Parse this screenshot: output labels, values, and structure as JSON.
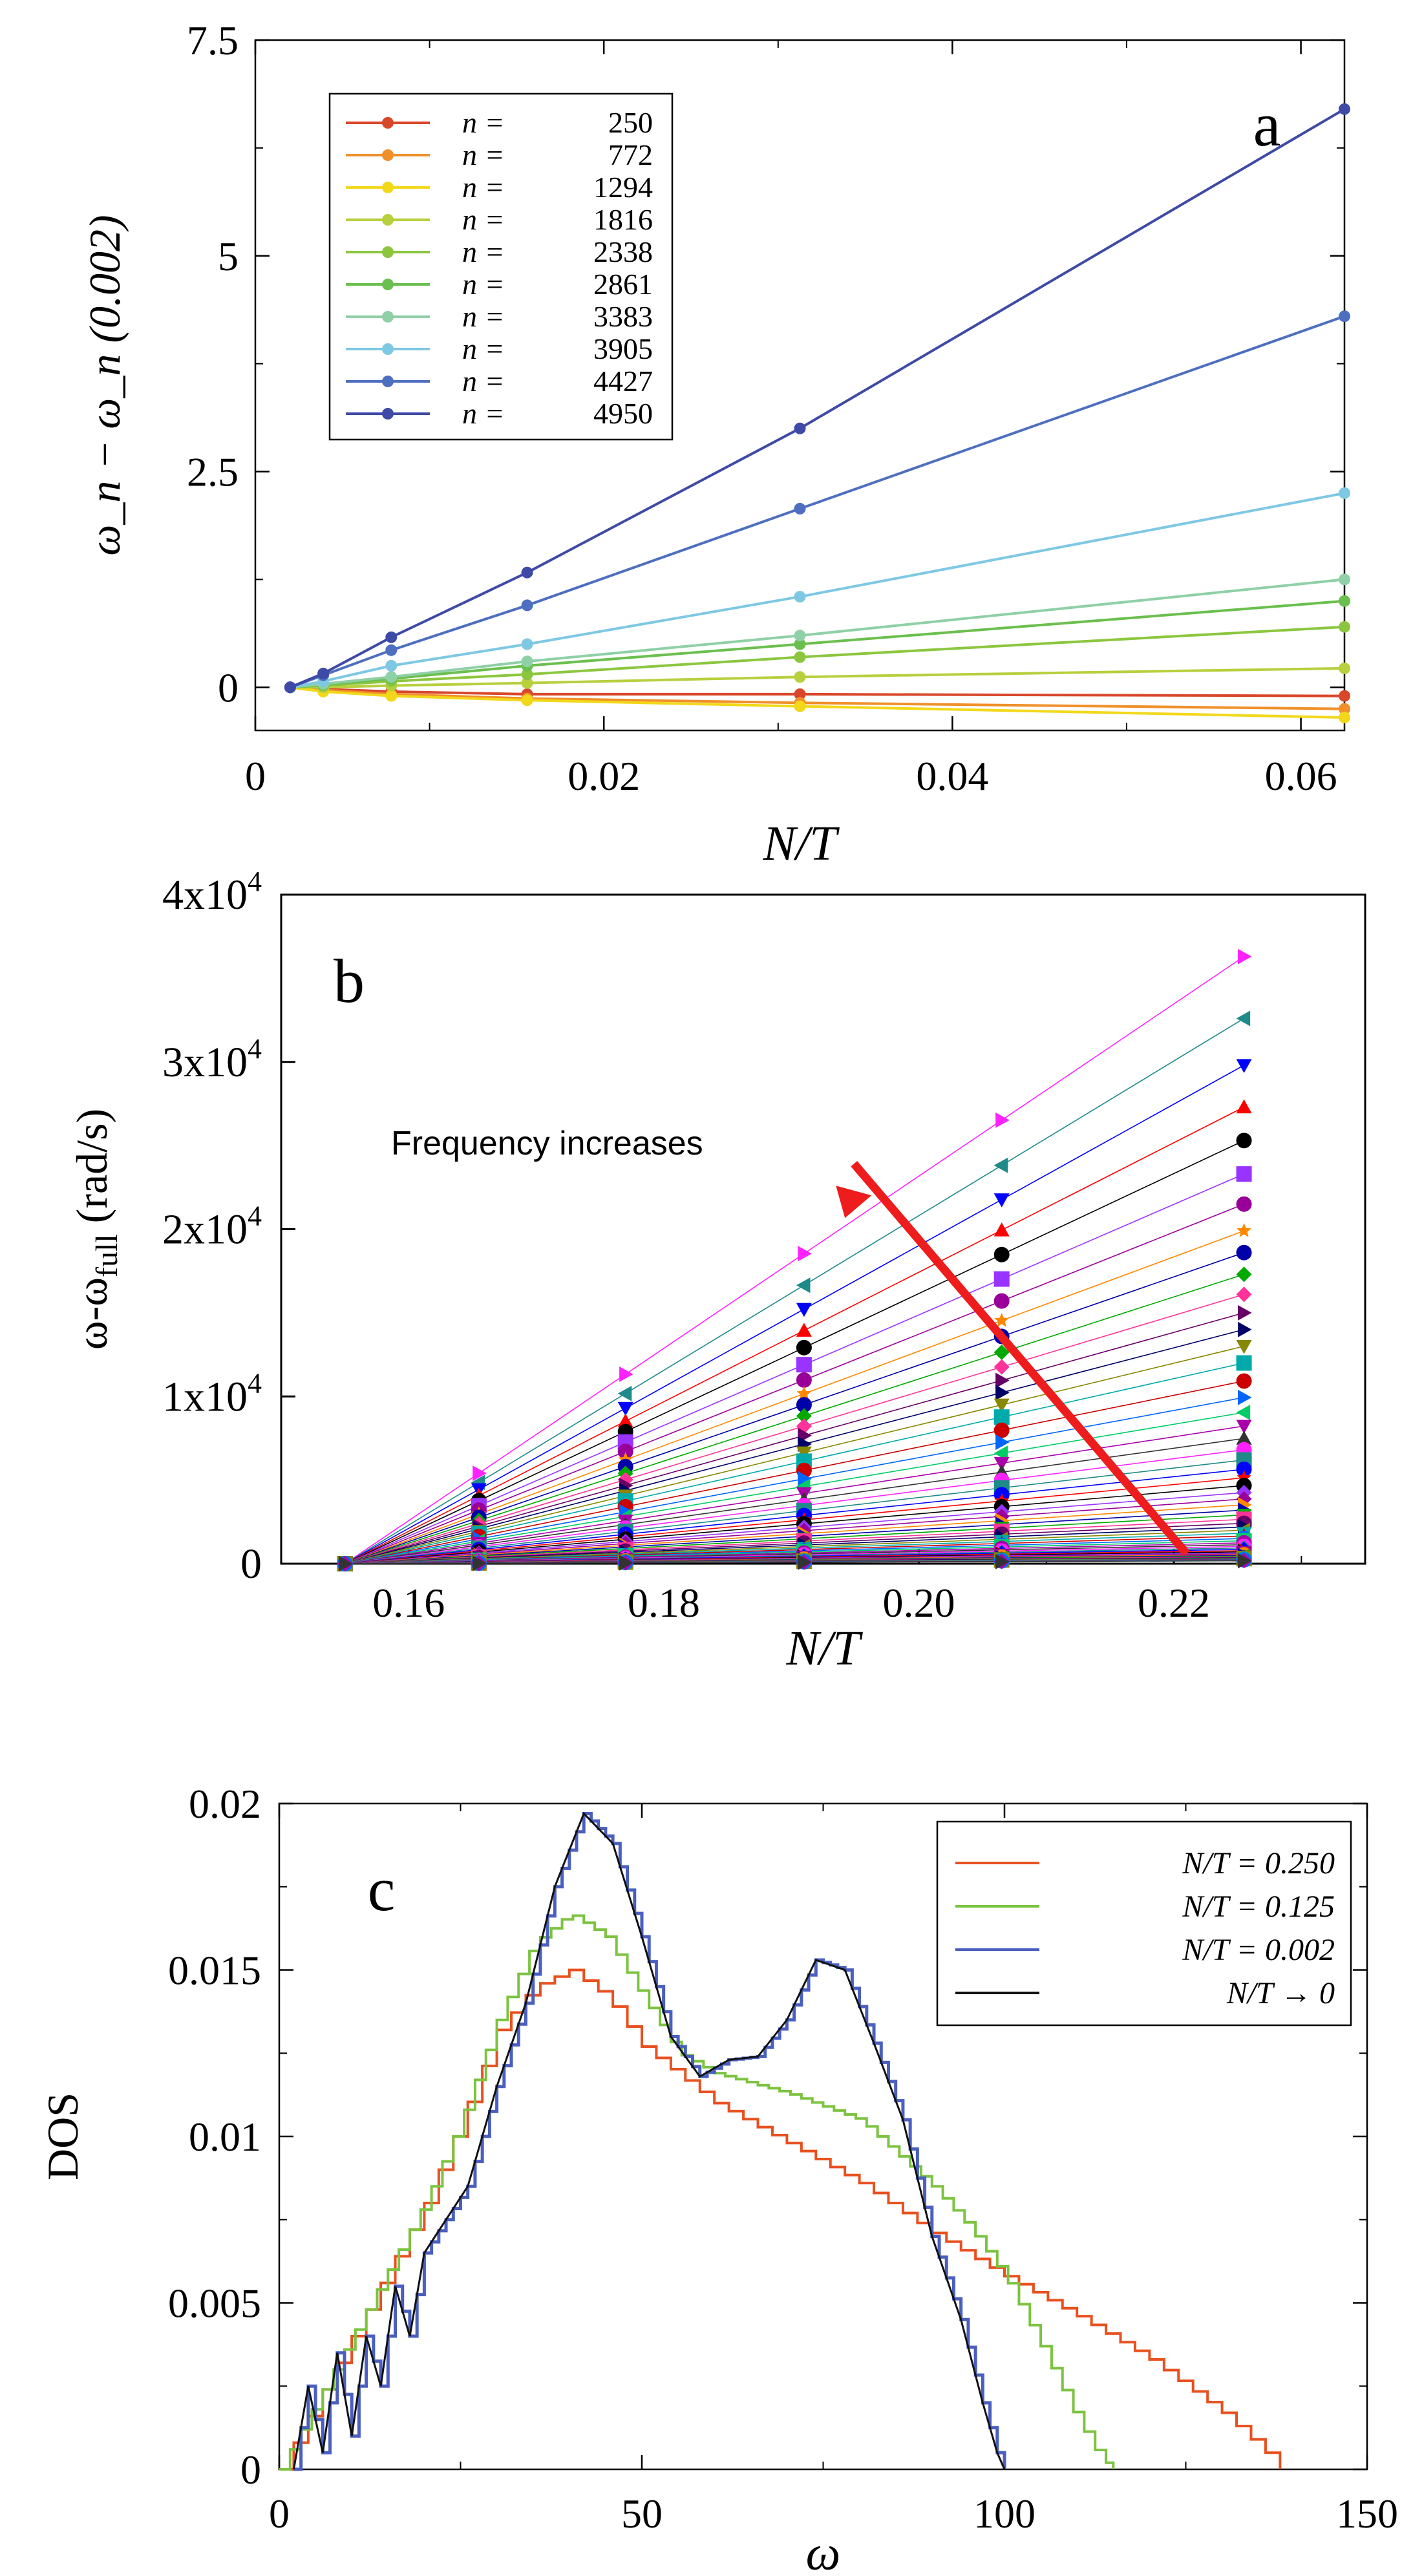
{
  "figure": {
    "panels": [
      "a",
      "b",
      "c"
    ]
  },
  "chart_data": [
    {
      "panel_label": "a",
      "type": "line",
      "xlabel": "N/T",
      "ylabel": "ω_n − ω_n (0.002)",
      "xlim": [
        0,
        0.0625
      ],
      "ylim": [
        -0.5,
        7.5
      ],
      "xticks": [
        0,
        0.02,
        0.04,
        0.06
      ],
      "xtick_labels": [
        "0",
        "0.02",
        "0.04",
        "0.06"
      ],
      "yticks": [
        0,
        2.5,
        5,
        7.5
      ],
      "ytick_labels": [
        "0",
        "2.5",
        "5",
        "7.5"
      ],
      "legend_position": "top-left",
      "legend_prefix": "n = ",
      "x": [
        0.002,
        0.0039,
        0.0078,
        0.0156,
        0.03125,
        0.0625
      ],
      "series": [
        {
          "name": "250",
          "color": "#d9472b",
          "values": [
            0,
            -0.02,
            -0.05,
            -0.08,
            -0.08,
            -0.1
          ]
        },
        {
          "name": "772",
          "color": "#f0902a",
          "values": [
            0,
            -0.03,
            -0.08,
            -0.13,
            -0.18,
            -0.25
          ]
        },
        {
          "name": "1294",
          "color": "#f2d81b",
          "values": [
            0,
            -0.05,
            -0.1,
            -0.15,
            -0.22,
            -0.35
          ]
        },
        {
          "name": "1816",
          "color": "#b8cf3e",
          "values": [
            0,
            0.0,
            0.02,
            0.05,
            0.12,
            0.22
          ]
        },
        {
          "name": "2338",
          "color": "#8cc63f",
          "values": [
            0,
            0.02,
            0.07,
            0.15,
            0.35,
            0.7
          ]
        },
        {
          "name": "2861",
          "color": "#6bbf4e",
          "values": [
            0,
            0.03,
            0.1,
            0.25,
            0.5,
            1.0
          ]
        },
        {
          "name": "3383",
          "color": "#8fd0a6",
          "values": [
            0,
            0.04,
            0.12,
            0.3,
            0.6,
            1.25
          ]
        },
        {
          "name": "3905",
          "color": "#7ec8e3",
          "values": [
            0,
            0.07,
            0.25,
            0.5,
            1.05,
            2.25
          ]
        },
        {
          "name": "4427",
          "color": "#4e6fc0",
          "values": [
            0,
            0.14,
            0.43,
            0.95,
            2.07,
            4.3
          ]
        },
        {
          "name": "4950",
          "color": "#3f4aa6",
          "values": [
            0,
            0.16,
            0.58,
            1.33,
            3.0,
            6.7
          ]
        }
      ]
    },
    {
      "panel_label": "b",
      "type": "scatter",
      "xlabel": "N/T",
      "ylabel": "ω-ω_full (rad/s)",
      "ylabel_main": "ω-ω",
      "ylabel_sub": "full",
      "ylabel_unit": " (rad/s)",
      "xlim": [
        0.15,
        0.235
      ],
      "ylim": [
        0,
        40000
      ],
      "xticks": [
        0.16,
        0.18,
        0.2,
        0.22
      ],
      "xtick_labels": [
        "0.16",
        "0.18",
        "0.20",
        "0.22"
      ],
      "yticks": [
        0,
        10000,
        20000,
        30000,
        40000
      ],
      "ytick_mantissa": [
        "0",
        "1x10",
        "2x10",
        "3x10",
        "4x10"
      ],
      "ytick_exponent": [
        "",
        "4",
        "4",
        "4",
        "4"
      ],
      "x": [
        0.155,
        0.1655,
        0.177,
        0.191,
        0.2065,
        0.2255
      ],
      "highest_series_slopes": [
        36300,
        32600,
        29800,
        27300,
        25300,
        23300,
        21500,
        19900,
        18600,
        17300,
        16100,
        15000,
        14000,
        13000,
        12000
      ],
      "annotation": "Frequency increases",
      "arrow_from": [
        0.221,
        600
      ],
      "arrow_to": [
        0.1935,
        22600
      ],
      "arrow_color": "#ee1c1c"
    },
    {
      "panel_label": "c",
      "type": "step",
      "xlabel": "ω",
      "ylabel": "DOS",
      "xlim": [
        0,
        150
      ],
      "ylim": [
        0,
        0.02
      ],
      "xticks": [
        0,
        50,
        100,
        150
      ],
      "xtick_labels": [
        "0",
        "50",
        "100",
        "150"
      ],
      "yticks": [
        0,
        0.005,
        0.01,
        0.015,
        0.02
      ],
      "ytick_labels": [
        "0",
        "0.005",
        "0.01",
        "0.015",
        "0.02"
      ],
      "legend_position": "top-right",
      "series": [
        {
          "name": "N/T = 0.250",
          "color": "#e8501f",
          "x": [
            0,
            5,
            10,
            15,
            20,
            25,
            30,
            35,
            40,
            45,
            50,
            60,
            70,
            80,
            90,
            100,
            110,
            120,
            130,
            137,
            138
          ],
          "values": [
            0.0,
            0.002,
            0.004,
            0.006,
            0.008,
            0.0105,
            0.0132,
            0.0145,
            0.015,
            0.0142,
            0.0127,
            0.011,
            0.0098,
            0.0086,
            0.0071,
            0.0058,
            0.0046,
            0.0033,
            0.0017,
            0.0003,
            0
          ]
        },
        {
          "name": "N/T = 0.125",
          "color": "#7cc340",
          "x": [
            0,
            5,
            10,
            15,
            20,
            25,
            30,
            35,
            40,
            45,
            50,
            55,
            60,
            70,
            80,
            90,
            95,
            100,
            105,
            110,
            113,
            115
          ],
          "values": [
            0.0,
            0.002,
            0.004,
            0.006,
            0.008,
            0.0105,
            0.0135,
            0.0158,
            0.0167,
            0.016,
            0.0142,
            0.0125,
            0.0119,
            0.0113,
            0.0105,
            0.0085,
            0.0073,
            0.0058,
            0.0037,
            0.0015,
            0.0004,
            0
          ]
        },
        {
          "name": "N/T = 0.002",
          "color": "#4a5fc0",
          "x": [
            2,
            4,
            6,
            8,
            10,
            12,
            14,
            16,
            18,
            20,
            23,
            26,
            30,
            34,
            38,
            42,
            46,
            50,
            54,
            58,
            62,
            66,
            70,
            74,
            78,
            82,
            86,
            90,
            94,
            97,
            99,
            100
          ],
          "values": [
            0.0,
            0.0025,
            0.0005,
            0.0035,
            0.001,
            0.004,
            0.0025,
            0.0055,
            0.004,
            0.0065,
            0.0075,
            0.0085,
            0.0115,
            0.014,
            0.0175,
            0.0197,
            0.0188,
            0.016,
            0.013,
            0.0118,
            0.0123,
            0.0124,
            0.0135,
            0.0153,
            0.015,
            0.0128,
            0.0105,
            0.007,
            0.0045,
            0.002,
            0.0005,
            0
          ]
        },
        {
          "name": "N/T → 0",
          "color": "#111111",
          "x": [
            2,
            4,
            6,
            8,
            10,
            12,
            14,
            16,
            18,
            20,
            23,
            26,
            30,
            34,
            38,
            42,
            46,
            50,
            54,
            58,
            62,
            66,
            70,
            74,
            78,
            82,
            86,
            90,
            94,
            97,
            99,
            100
          ],
          "values": [
            0.0,
            0.0025,
            0.0005,
            0.0035,
            0.001,
            0.004,
            0.0025,
            0.0055,
            0.004,
            0.0065,
            0.0075,
            0.0085,
            0.0115,
            0.014,
            0.0175,
            0.0197,
            0.0188,
            0.016,
            0.013,
            0.0118,
            0.0123,
            0.0124,
            0.0135,
            0.0153,
            0.015,
            0.0128,
            0.0105,
            0.007,
            0.0045,
            0.002,
            0.0005,
            0
          ]
        }
      ]
    }
  ]
}
